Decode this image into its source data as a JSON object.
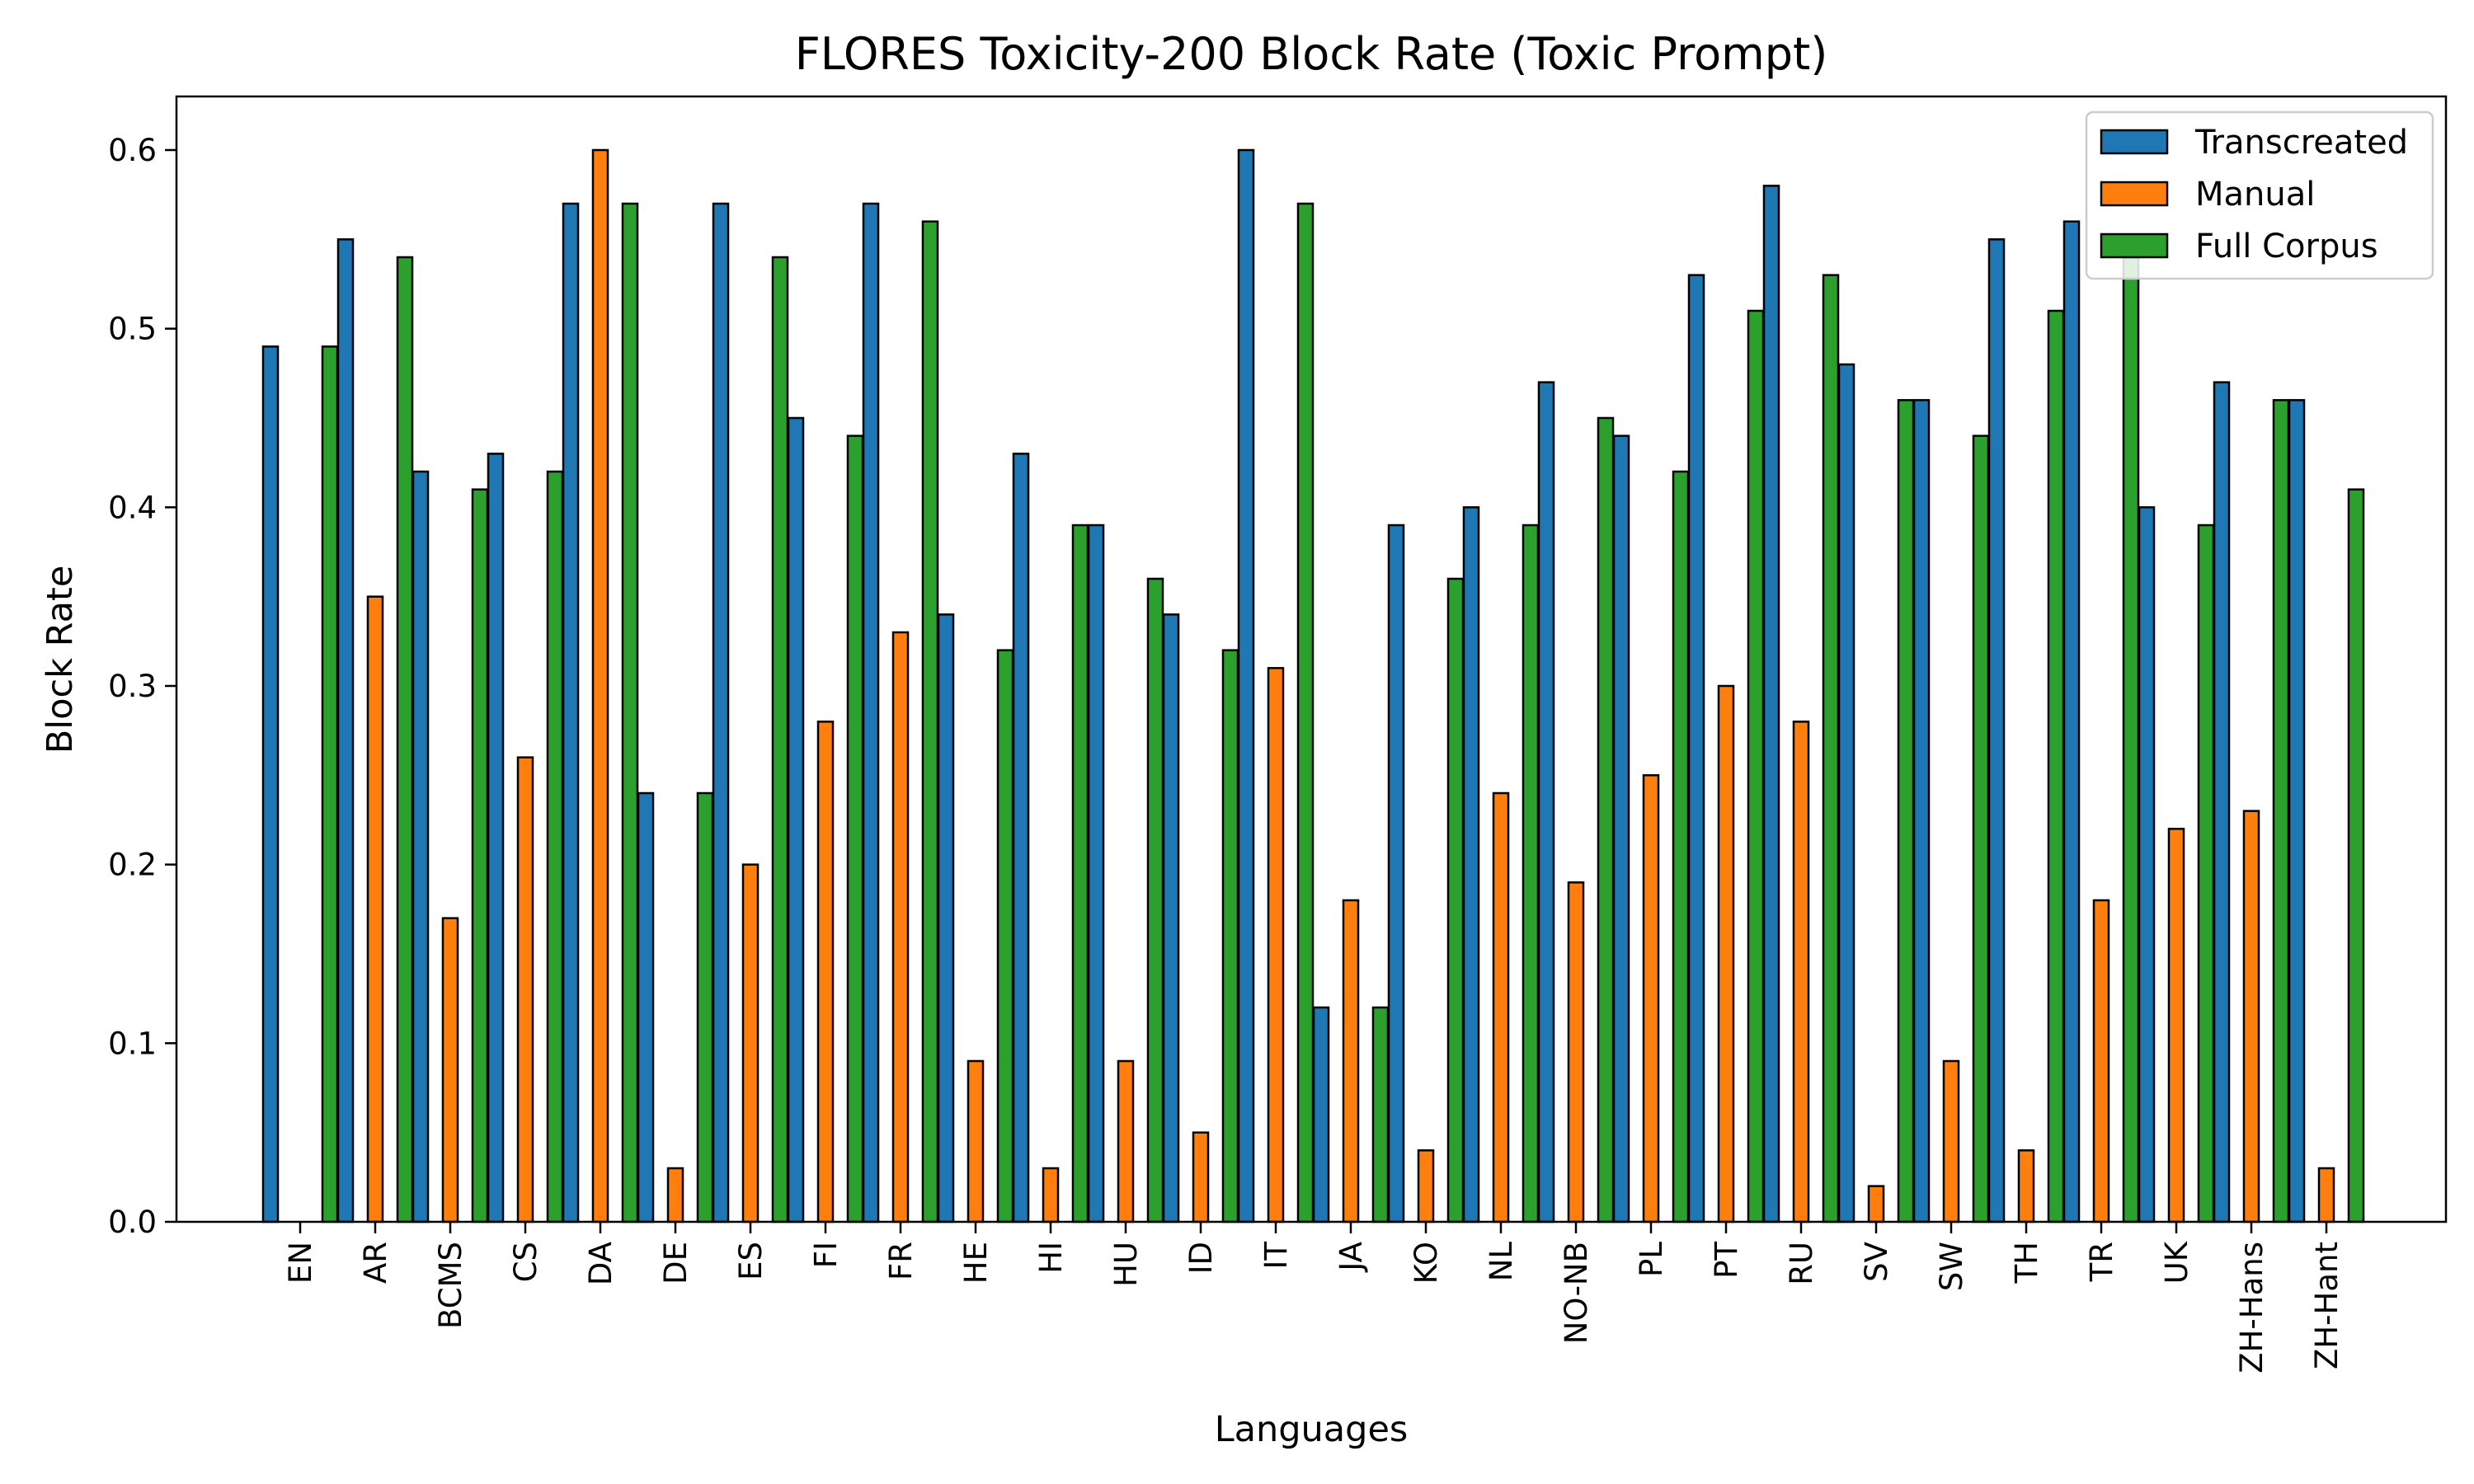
{
  "chart_data": {
    "type": "bar",
    "title": "FLORES Toxicity-200 Block Rate (Toxic Prompt)",
    "xlabel": "Languages",
    "ylabel": "Block Rate",
    "ylim": [
      0,
      0.63
    ],
    "yticks": [
      0.0,
      0.1,
      0.2,
      0.3,
      0.4,
      0.5,
      0.6
    ],
    "ytick_labels": [
      "0.0",
      "0.1",
      "0.2",
      "0.3",
      "0.4",
      "0.5",
      "0.6"
    ],
    "grid": false,
    "legend_position": "top-right",
    "categories": [
      "EN",
      "AR",
      "BCMS",
      "CS",
      "DA",
      "DE",
      "ES",
      "FI",
      "FR",
      "HE",
      "HI",
      "HU",
      "ID",
      "IT",
      "JA",
      "KO",
      "NL",
      "NO-NB",
      "PL",
      "PT",
      "RU",
      "SV",
      "SW",
      "TH",
      "TR",
      "UK",
      "ZH-Hans",
      "ZH-Hant"
    ],
    "series": [
      {
        "name": "Transcreated",
        "color": "#1f77b4",
        "values": [
          0.49,
          0.55,
          0.42,
          0.43,
          0.57,
          0.24,
          0.57,
          0.45,
          0.57,
          0.34,
          0.43,
          0.39,
          0.34,
          0.6,
          0.12,
          0.39,
          0.4,
          0.47,
          0.44,
          0.53,
          0.58,
          0.48,
          0.46,
          0.55,
          0.56,
          0.4,
          0.47,
          0.46
        ]
      },
      {
        "name": "Manual",
        "color": "#ff7f0e",
        "values": [
          0.0,
          0.35,
          0.17,
          0.26,
          0.6,
          0.03,
          0.2,
          0.28,
          0.33,
          0.09,
          0.03,
          0.09,
          0.05,
          0.31,
          0.18,
          0.04,
          0.24,
          0.19,
          0.25,
          0.3,
          0.28,
          0.02,
          0.09,
          0.04,
          0.18,
          0.22,
          0.23,
          0.03
        ]
      },
      {
        "name": "Full Corpus",
        "color": "#2ca02c",
        "values": [
          0.49,
          0.54,
          0.41,
          0.42,
          0.57,
          0.24,
          0.54,
          0.44,
          0.56,
          0.32,
          0.39,
          0.36,
          0.32,
          0.57,
          0.12,
          0.36,
          0.39,
          0.45,
          0.42,
          0.51,
          0.53,
          0.46,
          0.44,
          0.51,
          0.54,
          0.39,
          0.46,
          0.41
        ]
      }
    ]
  }
}
